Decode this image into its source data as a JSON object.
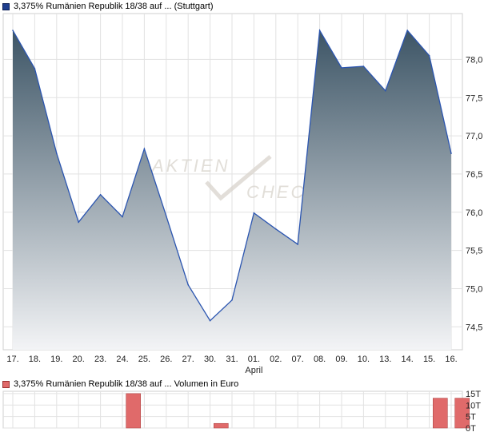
{
  "legend": {
    "price_label": "3,375% Rumänien Republik 18/38 auf ... (Stuttgart)",
    "volume_label": "3,375% Rumänien Republik 18/38 auf ... Volumen in Euro"
  },
  "watermark": {
    "line1": "AKTIEN",
    "line2": "CHEC"
  },
  "colors": {
    "price_line": "#2b55b0",
    "area_top": "#3d5566",
    "area_bottom": "#f3f4f6",
    "volume_bar": "#e06a6a",
    "grid": "#e2e2e2"
  },
  "chart_data": [
    {
      "type": "area",
      "title": "3,375% Rumänien Republik 18/38 auf ... (Stuttgart)",
      "categories": [
        "17.",
        "18.",
        "19.",
        "20.",
        "23.",
        "24.",
        "25.",
        "26.",
        "27.",
        "30.",
        "31.",
        "01.",
        "02.",
        "07.",
        "08.",
        "09.",
        "10.",
        "13.",
        "14.",
        "15.",
        "16."
      ],
      "month_label": "April",
      "month_label_at": "01.",
      "values": [
        78.38,
        77.88,
        76.77,
        75.87,
        76.23,
        75.94,
        76.83,
        75.95,
        75.05,
        74.58,
        74.85,
        75.99,
        75.78,
        75.58,
        78.38,
        77.89,
        77.91,
        77.59,
        78.38,
        78.05,
        76.77
      ],
      "y_ticks": [
        "74,5",
        "75,0",
        "75,5",
        "76,0",
        "76,5",
        "77,0",
        "77,5",
        "78,0"
      ],
      "ylim": [
        74.2,
        78.6
      ],
      "grid": true
    },
    {
      "type": "bar",
      "title": "3,375% Rumänien Republik 18/38 auf ... Volumen in Euro",
      "categories": [
        "17.",
        "18.",
        "19.",
        "20.",
        "23.",
        "24.",
        "25.",
        "26.",
        "27.",
        "30.",
        "31.",
        "01.",
        "02.",
        "07.",
        "08.",
        "09.",
        "10.",
        "13.",
        "14.",
        "15.",
        "16."
      ],
      "values": [
        0,
        0,
        0,
        0,
        0,
        15,
        0,
        0,
        0,
        2,
        0,
        0,
        0,
        0,
        0,
        0,
        0,
        0,
        0,
        13,
        13
      ],
      "unit": "T",
      "y_ticks": [
        "0T",
        "5T",
        "10T",
        "15T"
      ],
      "ylim": [
        0,
        16
      ],
      "grid": true
    }
  ]
}
